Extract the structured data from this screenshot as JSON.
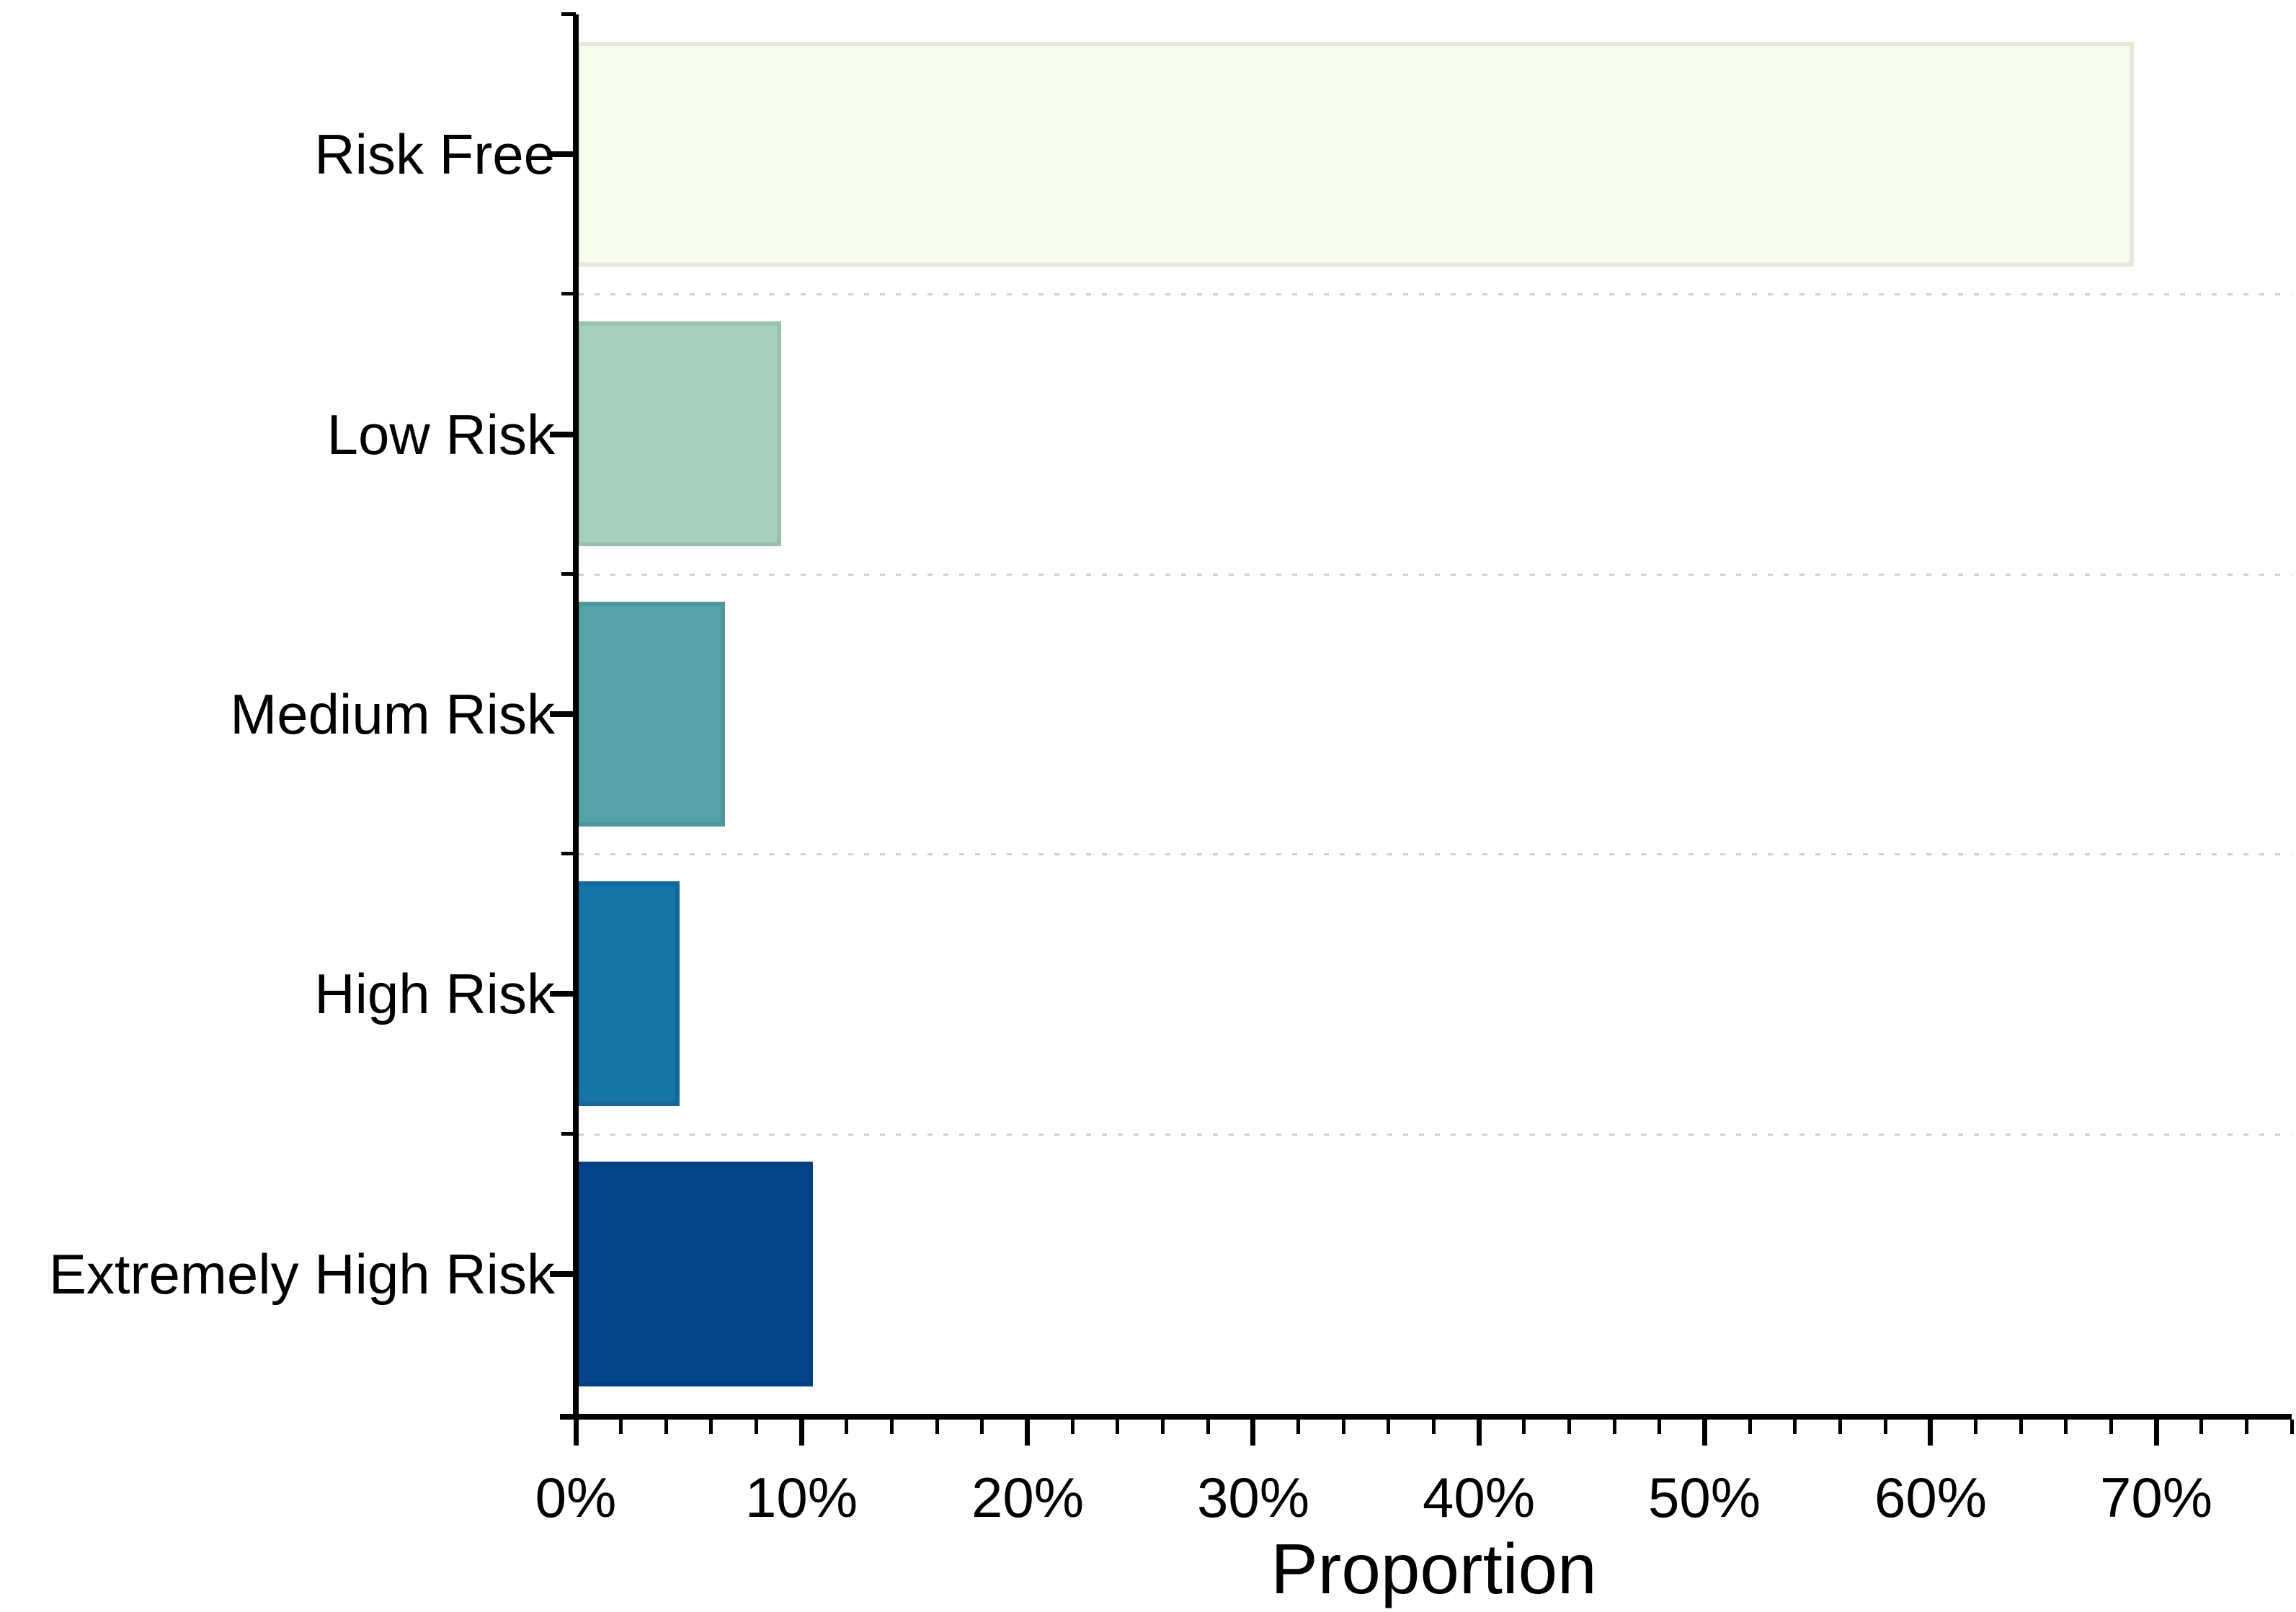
{
  "chart_data": {
    "type": "bar",
    "orientation": "horizontal",
    "title": "",
    "xlabel": "Proportion",
    "ylabel": "",
    "categories": [
      "Risk Free",
      "Low Risk",
      "Medium Risk",
      "High Risk",
      "Extremely High Risk"
    ],
    "values": [
      69.0,
      9.1,
      6.6,
      4.6,
      10.5
    ],
    "value_unit": "%",
    "xlim": [
      0,
      76
    ],
    "x_major_tick_step": 10,
    "x_minor_tick_step": 2,
    "x_tick_labels": [
      "0%",
      "10%",
      "20%",
      "30%",
      "40%",
      "50%",
      "60%",
      "70%"
    ],
    "bar_colors": [
      "#f7fdee",
      "#a6d0be",
      "#55a2a8",
      "#1573a5",
      "#05458c"
    ],
    "grid": "horizontal dotted lines between category bands",
    "gridline_color": "#cfcfcf",
    "axis_color": "#000000",
    "text_color": "#000000",
    "legend": "none"
  }
}
